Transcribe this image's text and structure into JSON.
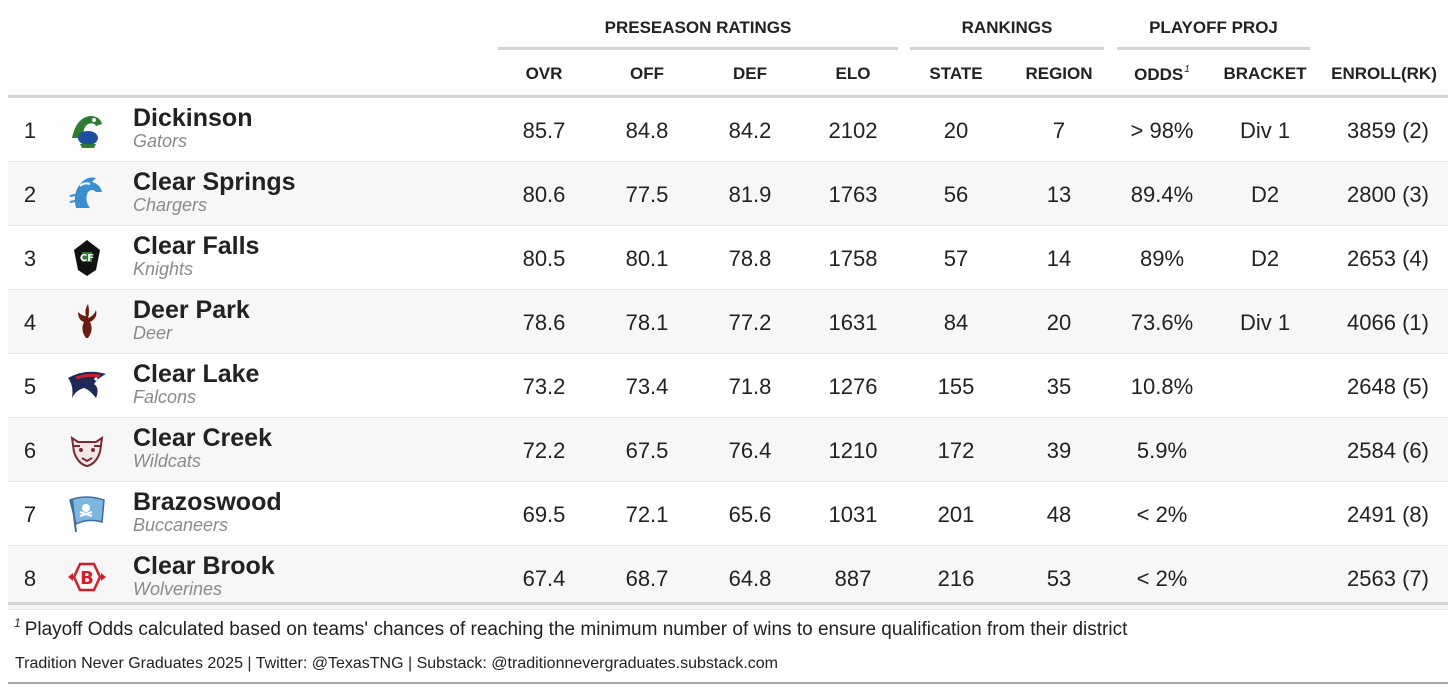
{
  "groups": {
    "preseason": "PRESEASON RATINGS",
    "rankings": "RANKINGS",
    "playoff": "PLAYOFF PROJ"
  },
  "columns": {
    "ovr": "OVR",
    "off": "OFF",
    "def": "DEF",
    "elo": "ELO",
    "state": "STATE",
    "region": "REGION",
    "odds": "ODDS",
    "odds_note": "1",
    "bracket": "BRACKET",
    "enroll": "ENROLL(RK)"
  },
  "rows": [
    {
      "rank": "1",
      "name": "Dickinson",
      "mascot": "Gators",
      "logo": "gator-icon",
      "ovr": "85.7",
      "off": "84.8",
      "def": "84.2",
      "elo": "2102",
      "state": "20",
      "region": "7",
      "odds": "> 98%",
      "bracket": "Div 1",
      "enroll": "3859 (2)"
    },
    {
      "rank": "2",
      "name": "Clear Springs",
      "mascot": "Chargers",
      "logo": "horse-icon",
      "ovr": "80.6",
      "off": "77.5",
      "def": "81.9",
      "elo": "1763",
      "state": "56",
      "region": "13",
      "odds": "89.4%",
      "bracket": "D2",
      "enroll": "2800 (3)"
    },
    {
      "rank": "3",
      "name": "Clear Falls",
      "mascot": "Knights",
      "logo": "knight-icon",
      "ovr": "80.5",
      "off": "80.1",
      "def": "78.8",
      "elo": "1758",
      "state": "57",
      "region": "14",
      "odds": "89%",
      "bracket": "D2",
      "enroll": "2653 (4)"
    },
    {
      "rank": "4",
      "name": "Deer Park",
      "mascot": "Deer",
      "logo": "deer-antler-icon",
      "ovr": "78.6",
      "off": "78.1",
      "def": "77.2",
      "elo": "1631",
      "state": "84",
      "region": "20",
      "odds": "73.6%",
      "bracket": "Div 1",
      "enroll": "4066 (1)"
    },
    {
      "rank": "5",
      "name": "Clear Lake",
      "mascot": "Falcons",
      "logo": "falcon-icon",
      "ovr": "73.2",
      "off": "73.4",
      "def": "71.8",
      "elo": "1276",
      "state": "155",
      "region": "35",
      "odds": "10.8%",
      "bracket": "",
      "enroll": "2648 (5)"
    },
    {
      "rank": "6",
      "name": "Clear Creek",
      "mascot": "Wildcats",
      "logo": "wildcat-icon",
      "ovr": "72.2",
      "off": "67.5",
      "def": "76.4",
      "elo": "1210",
      "state": "172",
      "region": "39",
      "odds": "5.9%",
      "bracket": "",
      "enroll": "2584 (6)"
    },
    {
      "rank": "7",
      "name": "Brazoswood",
      "mascot": "Buccaneers",
      "logo": "pirate-flag-icon",
      "ovr": "69.5",
      "off": "72.1",
      "def": "65.6",
      "elo": "1031",
      "state": "201",
      "region": "48",
      "odds": "< 2%",
      "bracket": "",
      "enroll": "2491 (8)"
    },
    {
      "rank": "8",
      "name": "Clear Brook",
      "mascot": "Wolverines",
      "logo": "b-emblem-icon",
      "ovr": "67.4",
      "off": "68.7",
      "def": "64.8",
      "elo": "887",
      "state": "216",
      "region": "53",
      "odds": "< 2%",
      "bracket": "",
      "enroll": "2563 (7)"
    }
  ],
  "footnote": {
    "marker": "1",
    "text": "Playoff Odds calculated based on teams' chances of reaching the minimum number of wins to ensure qualification from their district"
  },
  "source": "Tradition Never Graduates 2025 | Twitter: @TexasTNG | Substack: @traditionnevergraduates.substack.com",
  "colors": {
    "gator_green": "#2e7d32",
    "gator_blue": "#1f4e9c",
    "charger_blue": "#3a8fd0",
    "knight_black": "#111111",
    "deer_maroon": "#6b1a14",
    "falcon_navy": "#1c2a55",
    "falcon_red": "#c8202f",
    "wildcat_maroon": "#7a2a33",
    "buc_lightblue": "#7fb6e0",
    "brook_red": "#d01f2a"
  }
}
